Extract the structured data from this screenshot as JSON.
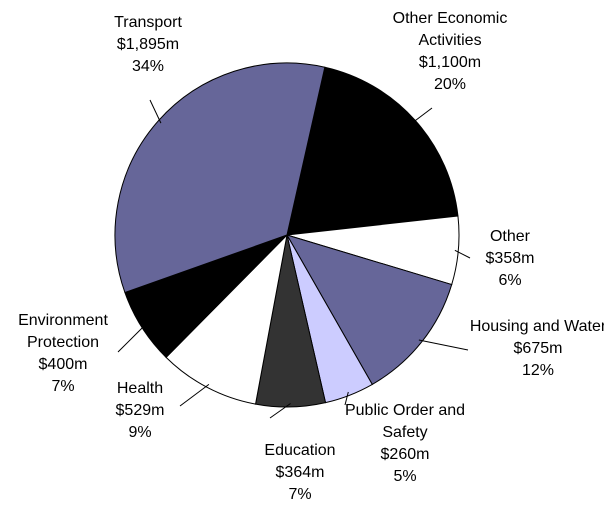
{
  "chart_data": {
    "type": "pie",
    "categories": [
      "Other Economic Activities",
      "Other",
      "Housing and Water",
      "Public Order and Safety",
      "Education",
      "Health",
      "Environment Protection",
      "Transport"
    ],
    "values": [
      1100,
      358,
      675,
      260,
      364,
      529,
      400,
      1895
    ],
    "value_labels": [
      "$1,100m",
      "$358m",
      "$675m",
      "$260m",
      "$364m",
      "$529m",
      "$400m",
      "$1,895m"
    ],
    "percents": [
      20,
      6,
      12,
      5,
      7,
      9,
      7,
      34
    ],
    "percent_labels": [
      "20%",
      "6%",
      "12%",
      "5%",
      "7%",
      "9%",
      "7%",
      "34%"
    ],
    "colors": [
      "#000000",
      "#ffffff",
      "#666699",
      "#ccccff",
      "#333333",
      "#ffffff",
      "#000000",
      "#666699"
    ]
  }
}
